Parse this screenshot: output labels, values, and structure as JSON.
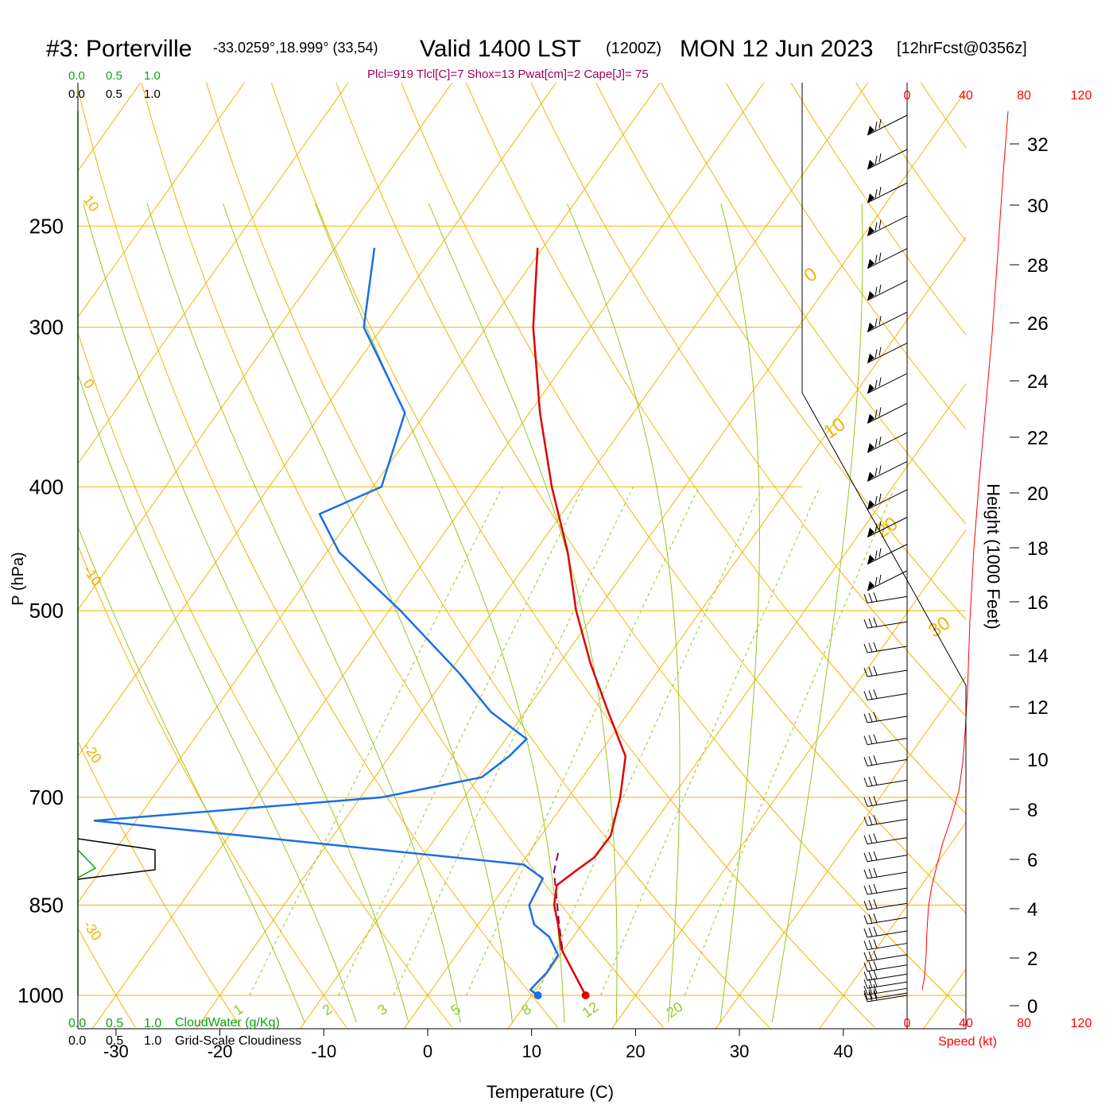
{
  "header": {
    "station": "#3: Porterville",
    "coords": "-33.0259°,18.999° (33,54)",
    "valid": "Valid 1400 LST",
    "utc": "(1200Z)",
    "date": "MON 12 Jun 2023",
    "forecast": "[12hrFcst@0356z]"
  },
  "indices": "Plcl=919 Tlcl[C]=7 Shox=13 Pwat[cm]=2 Cape[J]= 75",
  "cloud": {
    "scale_labels": [
      "0.0",
      "0.5",
      "1.0"
    ],
    "water_label": "CloudWater (g/Kg)",
    "gridscale_label": "Grid-Scale Cloudiness"
  },
  "colors": {
    "temperature": "#e00000",
    "dewpoint": "#1a6ee6",
    "isotherm": "#f2b400",
    "dry_adiabat": "#f2b400",
    "moist_adiabat": "#96c81e",
    "mixing_ratio": "#96c81e",
    "parcel": "#800060",
    "cloud_water": "#10a010",
    "speed_axis": "#ff0000",
    "indices": "#a0005a"
  },
  "chart_data": {
    "type": "skew-t log-p sounding",
    "xlabel": "Temperature (C)",
    "ylabel": "P (hPa)",
    "y2label": "Height (1000 Feet)",
    "x_ticks": [
      -30,
      -20,
      -10,
      0,
      10,
      20,
      30,
      40
    ],
    "pressure_levels": [
      250,
      300,
      400,
      500,
      700,
      850,
      1000
    ],
    "height_ticks": [
      0,
      2,
      4,
      6,
      8,
      10,
      12,
      14,
      16,
      18,
      20,
      22,
      24,
      26,
      28,
      30,
      32
    ],
    "isotherm_labels": [
      {
        "text": "10",
        "temp": 10
      },
      {
        "text": "0",
        "temp": 0
      },
      {
        "text": "-10",
        "temp": -10
      },
      {
        "text": "-20",
        "temp": -20
      },
      {
        "text": "-30",
        "temp": -30
      },
      {
        "text": "0",
        "temp": 0
      },
      {
        "text": "10",
        "temp": 10
      },
      {
        "text": "20",
        "temp": 20
      },
      {
        "text": "30",
        "temp": 30
      }
    ],
    "mixing_ratio_labels": [
      "1",
      "2",
      "3",
      "5",
      "8",
      "12",
      "20"
    ],
    "series": [
      {
        "name": "temperature",
        "points": [
          {
            "p": 1000,
            "t": 15.2
          },
          {
            "p": 960,
            "t": 12.5
          },
          {
            "p": 920,
            "t": 9.7
          },
          {
            "p": 880,
            "t": 7.7
          },
          {
            "p": 850,
            "t": 6.0
          },
          {
            "p": 820,
            "t": 4.9
          },
          {
            "p": 800,
            "t": 5.7
          },
          {
            "p": 780,
            "t": 6.6
          },
          {
            "p": 750,
            "t": 6.7
          },
          {
            "p": 700,
            "t": 5.0
          },
          {
            "p": 650,
            "t": 2.7
          },
          {
            "p": 600,
            "t": -2.0
          },
          {
            "p": 550,
            "t": -7.0
          },
          {
            "p": 500,
            "t": -12.0
          },
          {
            "p": 450,
            "t": -16.8
          },
          {
            "p": 400,
            "t": -22.8
          },
          {
            "p": 350,
            "t": -29.0
          },
          {
            "p": 300,
            "t": -35.5
          },
          {
            "p": 260,
            "t": -40.5
          }
        ]
      },
      {
        "name": "dewpoint",
        "points": [
          {
            "p": 1000,
            "t": 10.6
          },
          {
            "p": 990,
            "t": 9.5
          },
          {
            "p": 960,
            "t": 9.9
          },
          {
            "p": 930,
            "t": 9.8
          },
          {
            "p": 900,
            "t": 7.7
          },
          {
            "p": 880,
            "t": 5.4
          },
          {
            "p": 850,
            "t": 3.6
          },
          {
            "p": 810,
            "t": 3.1
          },
          {
            "p": 790,
            "t": 0.3
          },
          {
            "p": 745,
            "t": -32.4
          },
          {
            "p": 730,
            "t": -44.0
          },
          {
            "p": 700,
            "t": -18.0
          },
          {
            "p": 675,
            "t": -9.7
          },
          {
            "p": 650,
            "t": -8.5
          },
          {
            "p": 630,
            "t": -8.0
          },
          {
            "p": 600,
            "t": -13.3
          },
          {
            "p": 560,
            "t": -18.9
          },
          {
            "p": 500,
            "t": -28.9
          },
          {
            "p": 450,
            "t": -38.8
          },
          {
            "p": 420,
            "t": -43.3
          },
          {
            "p": 400,
            "t": -39.2
          },
          {
            "p": 350,
            "t": -42.0
          },
          {
            "p": 300,
            "t": -51.8
          },
          {
            "p": 260,
            "t": -56.2
          }
        ]
      },
      {
        "name": "parcel",
        "points": [
          {
            "p": 920,
            "t": 9.8
          },
          {
            "p": 880,
            "t": 7.8
          },
          {
            "p": 840,
            "t": 5.8
          },
          {
            "p": 800,
            "t": 3.7
          },
          {
            "p": 770,
            "t": 2.7
          }
        ]
      }
    ],
    "wind_barbs_count": 42,
    "wind_speed_axis": {
      "label": "Speed (kt)",
      "ticks": [
        0,
        40,
        80,
        120
      ]
    },
    "cloud_water_range": [
      0.0,
      1.0
    ],
    "grid": true
  }
}
